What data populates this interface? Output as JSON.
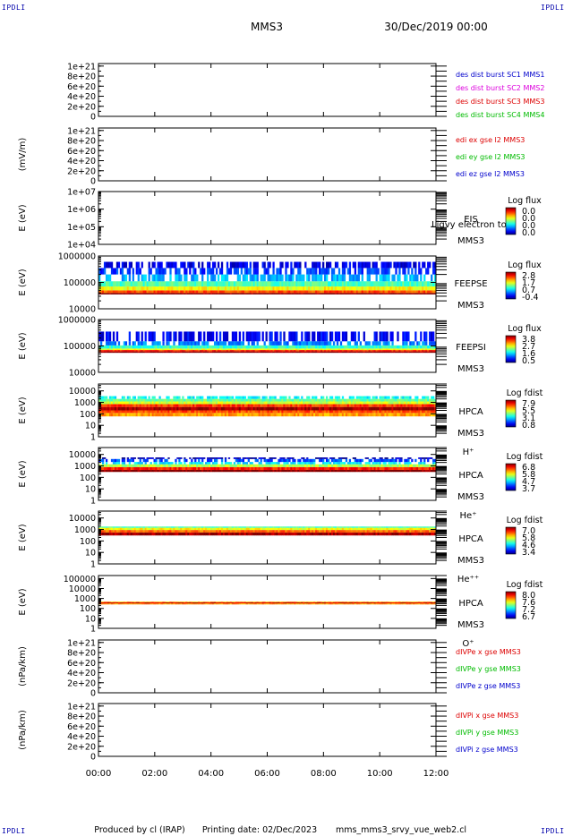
{
  "header": {
    "mission": "MMS3",
    "datetime": "30/Dec/2019 00:00",
    "corner_tag": "IPDLI"
  },
  "footer": {
    "produced_by": "Produced by cl (IRAP)",
    "printing_date": "Printing date: 02/Dec/2023",
    "script_name": "mms_mms3_srvy_vue_web2.cl"
  },
  "chart_data": {
    "type": "heatmap",
    "x_ticks": [
      "00:00",
      "02:00",
      "04:00",
      "06:00",
      "08:00",
      "10:00",
      "12:00"
    ],
    "xlim": [
      "00:00",
      "12:00"
    ],
    "panels": [
      {
        "id": "des_dist_burst",
        "kind": "line",
        "ylabel": "",
        "y_ticks": [
          "1e+21",
          "8e+20",
          "6e+20",
          "4e+20",
          "2e+20",
          "0"
        ],
        "ylim": [
          0,
          1.05e+21
        ],
        "zero_line": true,
        "legend": [
          {
            "text": "des dist burst SC1 MMS1",
            "color": "#0000cc"
          },
          {
            "text": "des dist burst SC2 MMS2",
            "color": "#dd00dd"
          },
          {
            "text": "des dist burst SC3 MMS3",
            "color": "#dd0000"
          },
          {
            "text": "des dist burst SC4 MMS4",
            "color": "#00bb00"
          }
        ]
      },
      {
        "id": "edi_e",
        "kind": "line",
        "ylabel": "(mV/m)",
        "y_ticks": [
          "1e+21",
          "8e+20",
          "6e+20",
          "4e+20",
          "2e+20",
          "0"
        ],
        "ylim": [
          0,
          1.05e+21
        ],
        "zero_line": true,
        "legend": [
          {
            "text": "edi ex gse l2 MMS3",
            "color": "#dd0000"
          },
          {
            "text": "edi ey gse l2 MMS3",
            "color": "#00bb00"
          },
          {
            "text": "edi ez gse l2 MMS3",
            "color": "#0000cc"
          }
        ]
      },
      {
        "id": "eis",
        "kind": "spectrogram",
        "ylabel": "E (eV)",
        "y_ticks": [
          "1e+07",
          "1e+06",
          "1e+05",
          "1e+04"
        ],
        "ylim": [
          10000,
          10000000
        ],
        "yscale": "log",
        "label_lines": [
          "EIS",
          "MMS3"
        ],
        "overlay_text": "Ligvy electron to",
        "colorbar": {
          "title": "Log flux",
          "ticks": [
            "0.0",
            "0.0",
            "0.0",
            "0.0"
          ]
        },
        "bands": []
      },
      {
        "id": "feepse",
        "kind": "spectrogram",
        "ylabel": "E (eV)",
        "y_ticks": [
          "1000000",
          "100000",
          "10000"
        ],
        "ylim": [
          10000,
          1000000
        ],
        "yscale": "log",
        "label_lines": [
          "FEEPSE",
          "MMS3"
        ],
        "colorbar": {
          "title": "Log flux",
          "ticks": [
            "2.8",
            "1.7",
            "0.7",
            "-0.4"
          ]
        },
        "bands": [
          {
            "e_lo": 35000,
            "e_hi": 40000,
            "level": 1.0
          },
          {
            "e_lo": 40000,
            "e_hi": 50000,
            "level": 0.8
          },
          {
            "e_lo": 50000,
            "e_hi": 70000,
            "level": 0.62
          },
          {
            "e_lo": 70000,
            "e_hi": 110000,
            "level": 0.45
          },
          {
            "e_lo": 110000,
            "e_hi": 200000,
            "level": 0.3
          },
          {
            "e_lo": 200000,
            "e_hi": 350000,
            "level": 0.18
          },
          {
            "e_lo": 350000,
            "e_hi": 600000,
            "level": 0.1
          }
        ]
      },
      {
        "id": "feepsi",
        "kind": "spectrogram",
        "ylabel": "E (eV)",
        "y_ticks": [
          "1000000",
          "100000",
          "10000"
        ],
        "ylim": [
          10000,
          1000000
        ],
        "yscale": "log",
        "label_lines": [
          "FEEPSI",
          "MMS3"
        ],
        "colorbar": {
          "title": "Log flux",
          "ticks": [
            "3.8",
            "2.7",
            "1.6",
            "0.5"
          ]
        },
        "bands": [
          {
            "e_lo": 55000,
            "e_hi": 62000,
            "level": 1.0
          },
          {
            "e_lo": 62000,
            "e_hi": 70000,
            "level": 0.85
          },
          {
            "e_lo": 70000,
            "e_hi": 80000,
            "level": 0.6
          },
          {
            "e_lo": 80000,
            "e_hi": 105000,
            "level": 0.42
          },
          {
            "e_lo": 105000,
            "e_hi": 150000,
            "level": 0.25
          },
          {
            "e_lo": 150000,
            "e_hi": 350000,
            "level": 0.12
          }
        ]
      },
      {
        "id": "hpca_h",
        "kind": "spectrogram",
        "ylabel": "E (eV)",
        "y_ticks": [
          "10000",
          "1000",
          "100",
          "10",
          "1"
        ],
        "ylim": [
          1,
          40000
        ],
        "yscale": "log",
        "label_lines": [
          "HPCA",
          "MMS3",
          "H⁺"
        ],
        "colorbar": {
          "title": "Log fdist",
          "ticks": [
            "7.9",
            "5.5",
            "3.1",
            "0.8"
          ]
        },
        "bands": [
          {
            "e_lo": 60,
            "e_hi": 120,
            "level": 0.72
          },
          {
            "e_lo": 120,
            "e_hi": 200,
            "level": 0.8
          },
          {
            "e_lo": 200,
            "e_hi": 400,
            "level": 0.97
          },
          {
            "e_lo": 400,
            "e_hi": 700,
            "level": 0.82
          },
          {
            "e_lo": 700,
            "e_hi": 1200,
            "level": 0.58
          },
          {
            "e_lo": 1200,
            "e_hi": 2000,
            "level": 0.48
          },
          {
            "e_lo": 2000,
            "e_hi": 3500,
            "level": 0.38
          }
        ]
      },
      {
        "id": "hpca_he",
        "kind": "spectrogram",
        "ylabel": "E (eV)",
        "y_ticks": [
          "10000",
          "1000",
          "100",
          "10",
          "1"
        ],
        "ylim": [
          1,
          40000
        ],
        "yscale": "log",
        "label_lines": [
          "HPCA",
          "MMS3",
          "He⁺"
        ],
        "colorbar": {
          "title": "Log fdist",
          "ticks": [
            "6.8",
            "5.8",
            "4.7",
            "3.7"
          ]
        },
        "bands": [
          {
            "e_lo": 300,
            "e_hi": 450,
            "level": 1.0
          },
          {
            "e_lo": 450,
            "e_hi": 800,
            "level": 0.85
          },
          {
            "e_lo": 800,
            "e_hi": 1400,
            "level": 0.55
          },
          {
            "e_lo": 1400,
            "e_hi": 2200,
            "level": 0.35
          },
          {
            "e_lo": 2200,
            "e_hi": 4000,
            "level": 0.2
          },
          {
            "e_lo": 4000,
            "e_hi": 5500,
            "level": 0.05
          }
        ]
      },
      {
        "id": "hpca_he2",
        "kind": "spectrogram",
        "ylabel": "E (eV)",
        "y_ticks": [
          "10000",
          "1000",
          "100",
          "10",
          "1"
        ],
        "ylim": [
          1,
          40000
        ],
        "yscale": "log",
        "label_lines": [
          "HPCA",
          "MMS3",
          "He⁺⁺"
        ],
        "colorbar": {
          "title": "Log fdist",
          "ticks": [
            "7.0",
            "5.8",
            "4.6",
            "3.4"
          ]
        },
        "bands": [
          {
            "e_lo": 300,
            "e_hi": 550,
            "level": 0.97
          },
          {
            "e_lo": 550,
            "e_hi": 900,
            "level": 0.78
          },
          {
            "e_lo": 900,
            "e_hi": 1400,
            "level": 0.62
          },
          {
            "e_lo": 1400,
            "e_hi": 1800,
            "level": 0.45
          }
        ]
      },
      {
        "id": "hpca_o",
        "kind": "spectrogram",
        "ylabel": "E (eV)",
        "y_ticks": [
          "100000",
          "10000",
          "1000",
          "100",
          "10",
          "1"
        ],
        "ylim": [
          1,
          200000
        ],
        "yscale": "log",
        "label_lines": [
          "HPCA",
          "MMS3",
          "O⁺"
        ],
        "colorbar": {
          "title": "Log fdist",
          "ticks": [
            "8.0",
            "7.6",
            "7.2",
            "6.7"
          ]
        },
        "bands": [
          {
            "e_lo": 250,
            "e_hi": 320,
            "level": 0.72
          },
          {
            "e_lo": 320,
            "e_hi": 400,
            "level": 0.92
          },
          {
            "e_lo": 400,
            "e_hi": 480,
            "level": 0.72
          }
        ]
      },
      {
        "id": "divpe",
        "kind": "line",
        "ylabel": "(nPa/km)",
        "y_ticks": [
          "1e+21",
          "8e+20",
          "6e+20",
          "4e+20",
          "2e+20",
          "0"
        ],
        "ylim": [
          0,
          1.05e+21
        ],
        "zero_line": true,
        "legend": [
          {
            "text": "dIVPe x gse MMS3",
            "color": "#dd0000"
          },
          {
            "text": "dIVPe y gse MMS3",
            "color": "#00bb00"
          },
          {
            "text": "dIVPe z gse MMS3",
            "color": "#0000cc"
          }
        ]
      },
      {
        "id": "divpi",
        "kind": "line",
        "ylabel": "(nPa/km)",
        "y_ticks": [
          "1e+21",
          "8e+20",
          "6e+20",
          "4e+20",
          "2e+20",
          "0"
        ],
        "ylim": [
          0,
          1.05e+21
        ],
        "zero_line": true,
        "legend": [
          {
            "text": "dIVPi x gse MMS3",
            "color": "#dd0000"
          },
          {
            "text": "dIVPi y gse MMS3",
            "color": "#00bb00"
          },
          {
            "text": "dIVPi z gse MMS3",
            "color": "#0000cc"
          }
        ]
      }
    ]
  }
}
